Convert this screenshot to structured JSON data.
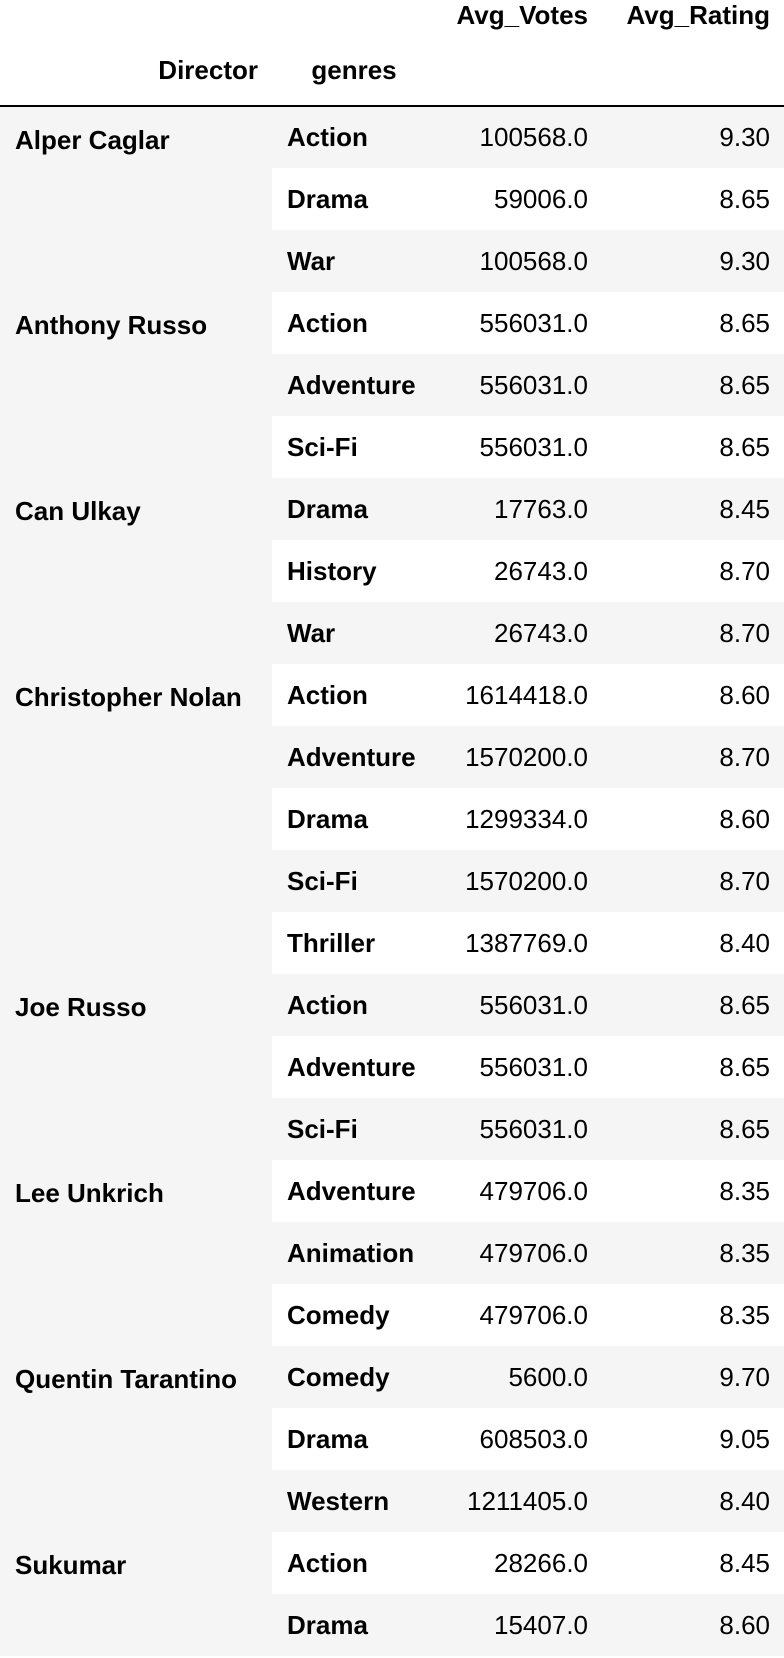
{
  "header": {
    "columns": [
      "Avg_Votes",
      "Avg_Rating"
    ],
    "index_names": [
      "Director",
      "genres"
    ]
  },
  "groups": [
    {
      "director": "Alper Caglar",
      "rows": [
        {
          "genre": "Action",
          "avg_votes": "100568.0",
          "avg_rating": "9.30"
        },
        {
          "genre": "Drama",
          "avg_votes": "59006.0",
          "avg_rating": "8.65"
        },
        {
          "genre": "War",
          "avg_votes": "100568.0",
          "avg_rating": "9.30"
        }
      ]
    },
    {
      "director": "Anthony Russo",
      "rows": [
        {
          "genre": "Action",
          "avg_votes": "556031.0",
          "avg_rating": "8.65"
        },
        {
          "genre": "Adventure",
          "avg_votes": "556031.0",
          "avg_rating": "8.65"
        },
        {
          "genre": "Sci-Fi",
          "avg_votes": "556031.0",
          "avg_rating": "8.65"
        }
      ]
    },
    {
      "director": "Can Ulkay",
      "rows": [
        {
          "genre": "Drama",
          "avg_votes": "17763.0",
          "avg_rating": "8.45"
        },
        {
          "genre": "History",
          "avg_votes": "26743.0",
          "avg_rating": "8.70"
        },
        {
          "genre": "War",
          "avg_votes": "26743.0",
          "avg_rating": "8.70"
        }
      ]
    },
    {
      "director": "Christopher Nolan",
      "rows": [
        {
          "genre": "Action",
          "avg_votes": "1614418.0",
          "avg_rating": "8.60"
        },
        {
          "genre": "Adventure",
          "avg_votes": "1570200.0",
          "avg_rating": "8.70"
        },
        {
          "genre": "Drama",
          "avg_votes": "1299334.0",
          "avg_rating": "8.60"
        },
        {
          "genre": "Sci-Fi",
          "avg_votes": "1570200.0",
          "avg_rating": "8.70"
        },
        {
          "genre": "Thriller",
          "avg_votes": "1387769.0",
          "avg_rating": "8.40"
        }
      ]
    },
    {
      "director": "Joe Russo",
      "rows": [
        {
          "genre": "Action",
          "avg_votes": "556031.0",
          "avg_rating": "8.65"
        },
        {
          "genre": "Adventure",
          "avg_votes": "556031.0",
          "avg_rating": "8.65"
        },
        {
          "genre": "Sci-Fi",
          "avg_votes": "556031.0",
          "avg_rating": "8.65"
        }
      ]
    },
    {
      "director": "Lee Unkrich",
      "rows": [
        {
          "genre": "Adventure",
          "avg_votes": "479706.0",
          "avg_rating": "8.35"
        },
        {
          "genre": "Animation",
          "avg_votes": "479706.0",
          "avg_rating": "8.35"
        },
        {
          "genre": "Comedy",
          "avg_votes": "479706.0",
          "avg_rating": "8.35"
        }
      ]
    },
    {
      "director": "Quentin Tarantino",
      "rows": [
        {
          "genre": "Comedy",
          "avg_votes": "5600.0",
          "avg_rating": "9.70"
        },
        {
          "genre": "Drama",
          "avg_votes": "608503.0",
          "avg_rating": "9.05"
        },
        {
          "genre": "Western",
          "avg_votes": "1211405.0",
          "avg_rating": "8.40"
        }
      ]
    },
    {
      "director": "Sukumar",
      "rows": [
        {
          "genre": "Action",
          "avg_votes": "28266.0",
          "avg_rating": "8.45"
        },
        {
          "genre": "Drama",
          "avg_votes": "15407.0",
          "avg_rating": "8.60"
        }
      ]
    }
  ]
}
